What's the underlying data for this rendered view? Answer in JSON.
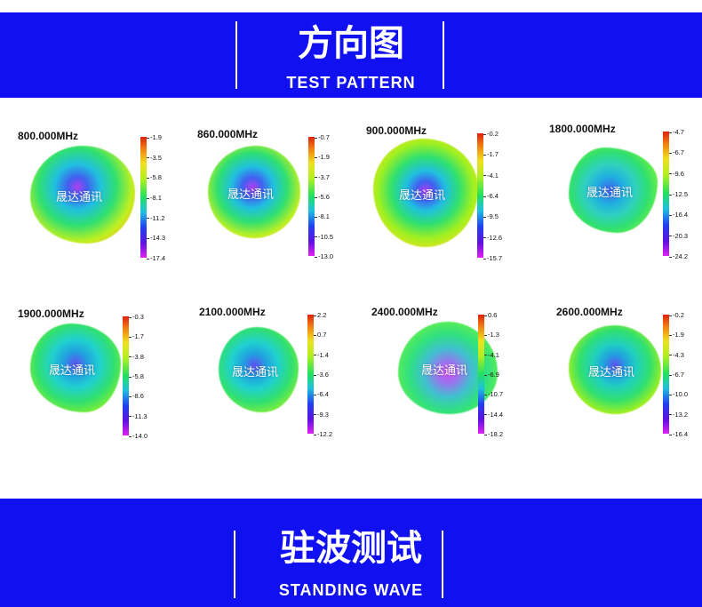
{
  "header_top": {
    "title_cn": "方向图",
    "title_en": "TEST PATTERN"
  },
  "header_bottom": {
    "title_cn": "驻波测试",
    "title_en": "STANDING WAVE"
  },
  "watermark": "晟达通讯",
  "colors": {
    "banner": "#1010f0",
    "text": "#ffffff"
  },
  "patterns": [
    {
      "freq": "800.000MHz",
      "ticks": [
        "-1.9",
        "-3.5",
        "-5.8",
        "-8.1",
        "-11.2",
        "-14.3",
        "-17.4"
      ]
    },
    {
      "freq": "860.000MHz",
      "ticks": [
        "-0.7",
        "-1.9",
        "-3.7",
        "-5.6",
        "-8.1",
        "-10.5",
        "-13.0"
      ]
    },
    {
      "freq": "900.000MHz",
      "ticks": [
        "-0.2",
        "-1.7",
        "-4.1",
        "-6.4",
        "-9.5",
        "-12.6",
        "-15.7"
      ]
    },
    {
      "freq": "1800.000MHz",
      "ticks": [
        "-4.7",
        "-6.7",
        "-9.6",
        "-12.5",
        "-16.4",
        "-20.3",
        "-24.2"
      ]
    },
    {
      "freq": "1900.000MHz",
      "ticks": [
        "-0.3",
        "-1.7",
        "-3.8",
        "-5.8",
        "-8.6",
        "-11.3",
        "-14.0"
      ]
    },
    {
      "freq": "2100.000MHz",
      "ticks": [
        "2.2",
        "0.7",
        "-1.4",
        "-3.6",
        "-6.4",
        "-9.3",
        "-12.2"
      ]
    },
    {
      "freq": "2400.000MHz",
      "ticks": [
        "0.6",
        "-1.3",
        "-4.1",
        "-6.9",
        "-10.7",
        "-14.4",
        "-18.2"
      ]
    },
    {
      "freq": "2600.000MHz",
      "ticks": [
        "-0.2",
        "-1.9",
        "-4.3",
        "-6.7",
        "-10.0",
        "-13.2",
        "-16.4"
      ]
    }
  ]
}
